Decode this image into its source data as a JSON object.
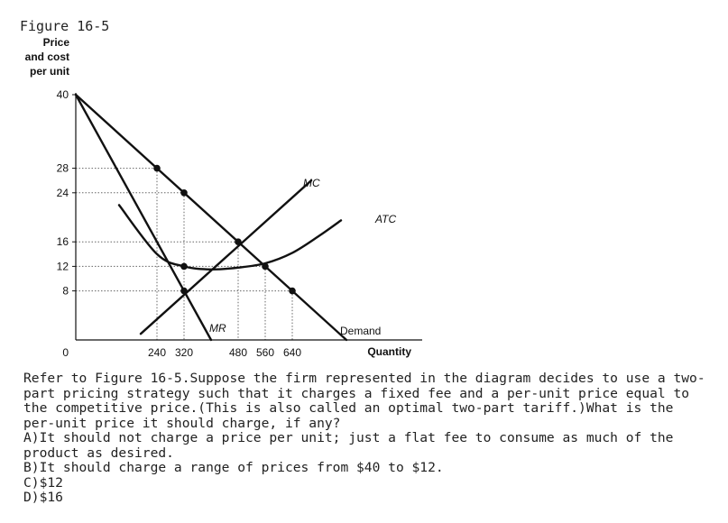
{
  "figure_caption": "Figure 16-5",
  "question": {
    "stem": "Refer to Figure 16-5.Suppose the firm represented in the diagram decides to use a two-part pricing strategy such that it charges a fixed fee and a per-unit price equal to the competitive price.(This is also called an optimal two-part tariff.)What is the per-unit price it should charge, if any?",
    "options": [
      "A)It should not charge a price per unit; just a flat fee to consume as much of the product as desired.",
      "B)It should charge a range of prices from $40 to $12.",
      "C)$12",
      "D)$16"
    ]
  },
  "chart_data": {
    "type": "line",
    "ylabel": [
      "Price",
      "and cost",
      "per unit"
    ],
    "xlabel": "Quantity",
    "xlim": [
      0,
      960
    ],
    "ylim": [
      0,
      40
    ],
    "xticks": [
      {
        "value": 240,
        "label": "240"
      },
      {
        "value": 320,
        "label": "320"
      },
      {
        "value": 480,
        "label": "480"
      },
      {
        "value": 560,
        "label": "560"
      },
      {
        "value": 640,
        "label": "640"
      }
    ],
    "yticks": [
      {
        "value": 40,
        "label": "40"
      },
      {
        "value": 28,
        "label": "28"
      },
      {
        "value": 24,
        "label": "24"
      },
      {
        "value": 16,
        "label": "16"
      },
      {
        "value": 12,
        "label": "12"
      },
      {
        "value": 8,
        "label": "8"
      }
    ],
    "origin_label": "0",
    "series": [
      {
        "name": "Demand",
        "points": [
          [
            0,
            40
          ],
          [
            800,
            0
          ]
        ]
      },
      {
        "name": "MR",
        "points": [
          [
            0,
            40
          ],
          [
            400,
            0
          ]
        ]
      },
      {
        "name": "MC",
        "points": [
          [
            192,
            1
          ],
          [
            696,
            26
          ]
        ]
      },
      {
        "name": "ATC",
        "points": [
          [
            128,
            22
          ],
          [
            240,
            14
          ],
          [
            320,
            12
          ],
          [
            400,
            11.5
          ],
          [
            480,
            11.8
          ],
          [
            560,
            12.5
          ],
          [
            640,
            14.2
          ],
          [
            720,
            17
          ],
          [
            784,
            19.5
          ]
        ]
      }
    ],
    "markers": [
      {
        "x": 240,
        "y": 28
      },
      {
        "x": 320,
        "y": 24
      },
      {
        "x": 480,
        "y": 16
      },
      {
        "x": 560,
        "y": 12
      },
      {
        "x": 640,
        "y": 8
      },
      {
        "x": 320,
        "y": 12
      },
      {
        "x": 320,
        "y": 8
      }
    ],
    "guides": [
      {
        "x": 240,
        "y": 28
      },
      {
        "x": 320,
        "y": 24
      },
      {
        "x": 480,
        "y": 16
      },
      {
        "x": 560,
        "y": 12
      },
      {
        "x": 640,
        "y": 8
      }
    ],
    "grid": false
  }
}
